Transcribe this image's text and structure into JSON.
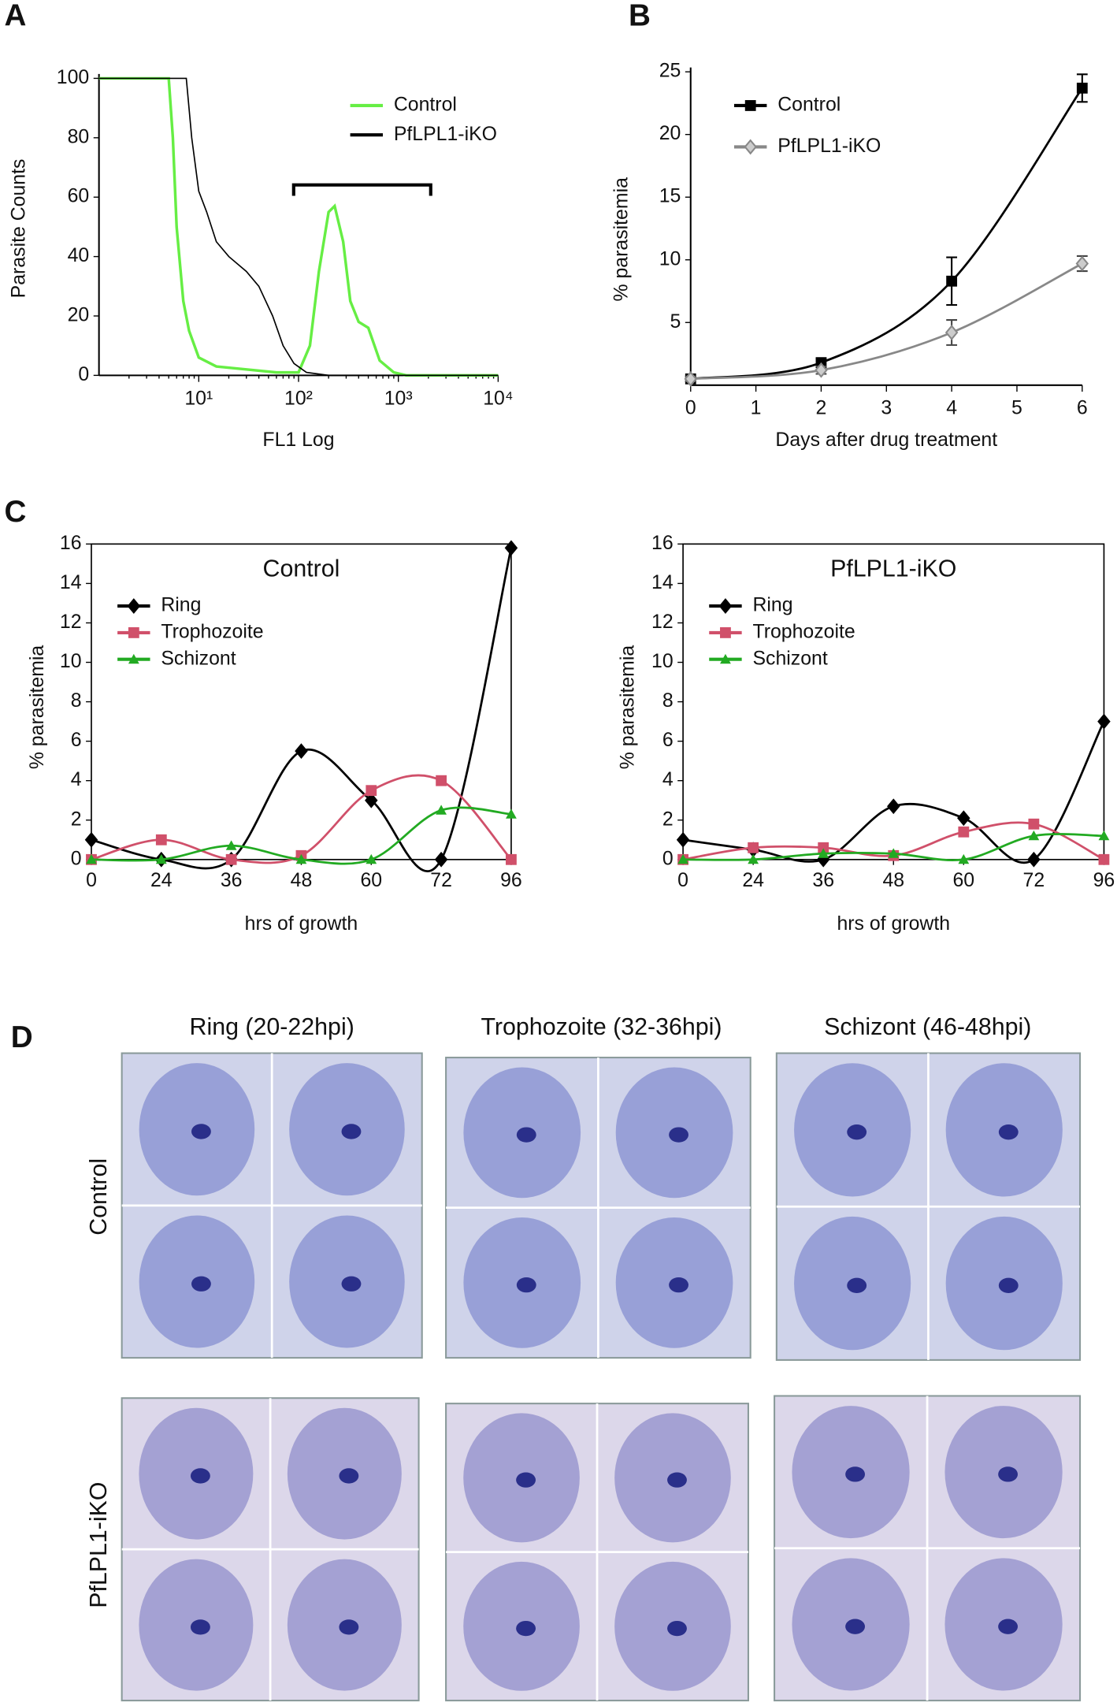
{
  "panel_labels": [
    "A",
    "B",
    "C",
    "D"
  ],
  "chart_data": [
    {
      "type": "line",
      "xscale": "log",
      "xlim": [
        1,
        10000
      ],
      "ylim": [
        0,
        100
      ],
      "xticks": [
        {
          "value": 10,
          "label": "10¹"
        },
        {
          "value": 100,
          "label": "10²"
        },
        {
          "value": 1000,
          "label": "10³"
        },
        {
          "value": 10000,
          "label": "10⁴"
        }
      ],
      "yticks": [
        0,
        20,
        40,
        60,
        80,
        100
      ],
      "xlabel": "FL1 Log",
      "ylabel": "Parasite Counts",
      "legend": "upper right",
      "series": [
        {
          "name": "Control",
          "color": "#66ee44",
          "x": [
            1,
            5,
            5.5,
            6,
            7,
            8,
            10,
            15,
            30,
            60,
            100,
            130,
            160,
            200,
            230,
            280,
            330,
            400,
            500,
            650,
            900,
            1200,
            10000
          ],
          "values": [
            100,
            100,
            80,
            50,
            25,
            15,
            6,
            3,
            2,
            1,
            1,
            10,
            35,
            55,
            57,
            45,
            25,
            18,
            16,
            5,
            1,
            0,
            0
          ]
        },
        {
          "name": "PfLPL1-iKO",
          "color": "#000000",
          "x": [
            1,
            7.5,
            8.5,
            10,
            12,
            15,
            20,
            30,
            40,
            55,
            70,
            90,
            120,
            200,
            10000
          ],
          "values": [
            100,
            100,
            80,
            62,
            55,
            45,
            40,
            35,
            30,
            20,
            10,
            4,
            1,
            0,
            0
          ]
        }
      ]
    },
    {
      "type": "line",
      "smooth": true,
      "x": [
        0,
        2,
        4,
        6
      ],
      "xlim": [
        0,
        6
      ],
      "ylim": [
        0,
        25
      ],
      "xticks": [
        0,
        1,
        2,
        3,
        4,
        5,
        6
      ],
      "yticks": [
        5,
        10,
        15,
        20,
        25
      ],
      "xlabel": "Days after drug treatment",
      "ylabel": "% parasitemia",
      "legend": "upper left",
      "series": [
        {
          "name": "Control",
          "color": "#000000",
          "marker": "square",
          "values": [
            0.5,
            1.8,
            8.3,
            23.7
          ],
          "errors": [
            0.2,
            0.3,
            1.9,
            1.1
          ]
        },
        {
          "name": "PfLPL1-iKO",
          "color": "#888888",
          "marker": "diamond",
          "values": [
            0.5,
            1.2,
            4.2,
            9.7
          ],
          "errors": [
            0.2,
            0.3,
            1.0,
            0.6
          ]
        }
      ]
    },
    {
      "type": "line",
      "smooth": true,
      "frame": true,
      "title": "Control",
      "categories": [
        "0",
        "24",
        "36",
        "48",
        "60",
        "72",
        "96"
      ],
      "ylim": [
        0,
        16
      ],
      "yticks": [
        0,
        2,
        4,
        6,
        8,
        10,
        12,
        14,
        16
      ],
      "xlabel": "hrs of growth",
      "ylabel": "% parasitemia",
      "legend": "upper left",
      "series": [
        {
          "name": "Ring",
          "color": "#000000",
          "marker": "diamond",
          "values": [
            1,
            0,
            0,
            5.5,
            3,
            0,
            15.8
          ]
        },
        {
          "name": "Trophozoite",
          "color": "#d0506a",
          "marker": "square",
          "values": [
            0,
            1,
            0,
            0.2,
            3.5,
            4,
            0
          ]
        },
        {
          "name": "Schizont",
          "color": "#22aa22",
          "marker": "triangle",
          "values": [
            0,
            0,
            0.7,
            0,
            0,
            2.5,
            2.3
          ]
        }
      ]
    },
    {
      "type": "line",
      "smooth": true,
      "frame": true,
      "title": "PfLPL1-iKO",
      "categories": [
        "0",
        "24",
        "36",
        "48",
        "60",
        "72",
        "96"
      ],
      "ylim": [
        0,
        16
      ],
      "yticks": [
        0,
        2,
        4,
        6,
        8,
        10,
        12,
        14,
        16
      ],
      "xlabel": "hrs of growth",
      "ylabel": "% parasitemia",
      "legend": "upper left",
      "series": [
        {
          "name": "Ring",
          "color": "#000000",
          "marker": "diamond",
          "values": [
            1,
            0.5,
            0,
            2.7,
            2.1,
            0,
            7
          ]
        },
        {
          "name": "Trophozoite",
          "color": "#d0506a",
          "marker": "square",
          "values": [
            0,
            0.6,
            0.6,
            0.2,
            1.4,
            1.8,
            0
          ]
        },
        {
          "name": "Schizont",
          "color": "#22aa22",
          "marker": "triangle",
          "values": [
            0,
            0,
            0.3,
            0.3,
            0,
            1.2,
            1.2
          ]
        }
      ]
    }
  ],
  "micrographs": {
    "columns": [
      "Ring (20-22hpi)",
      "Trophozoite (32-36hpi)",
      "Schizont (46-48hpi)"
    ],
    "rows": [
      "Control",
      "PfLPL1-iKO"
    ]
  }
}
